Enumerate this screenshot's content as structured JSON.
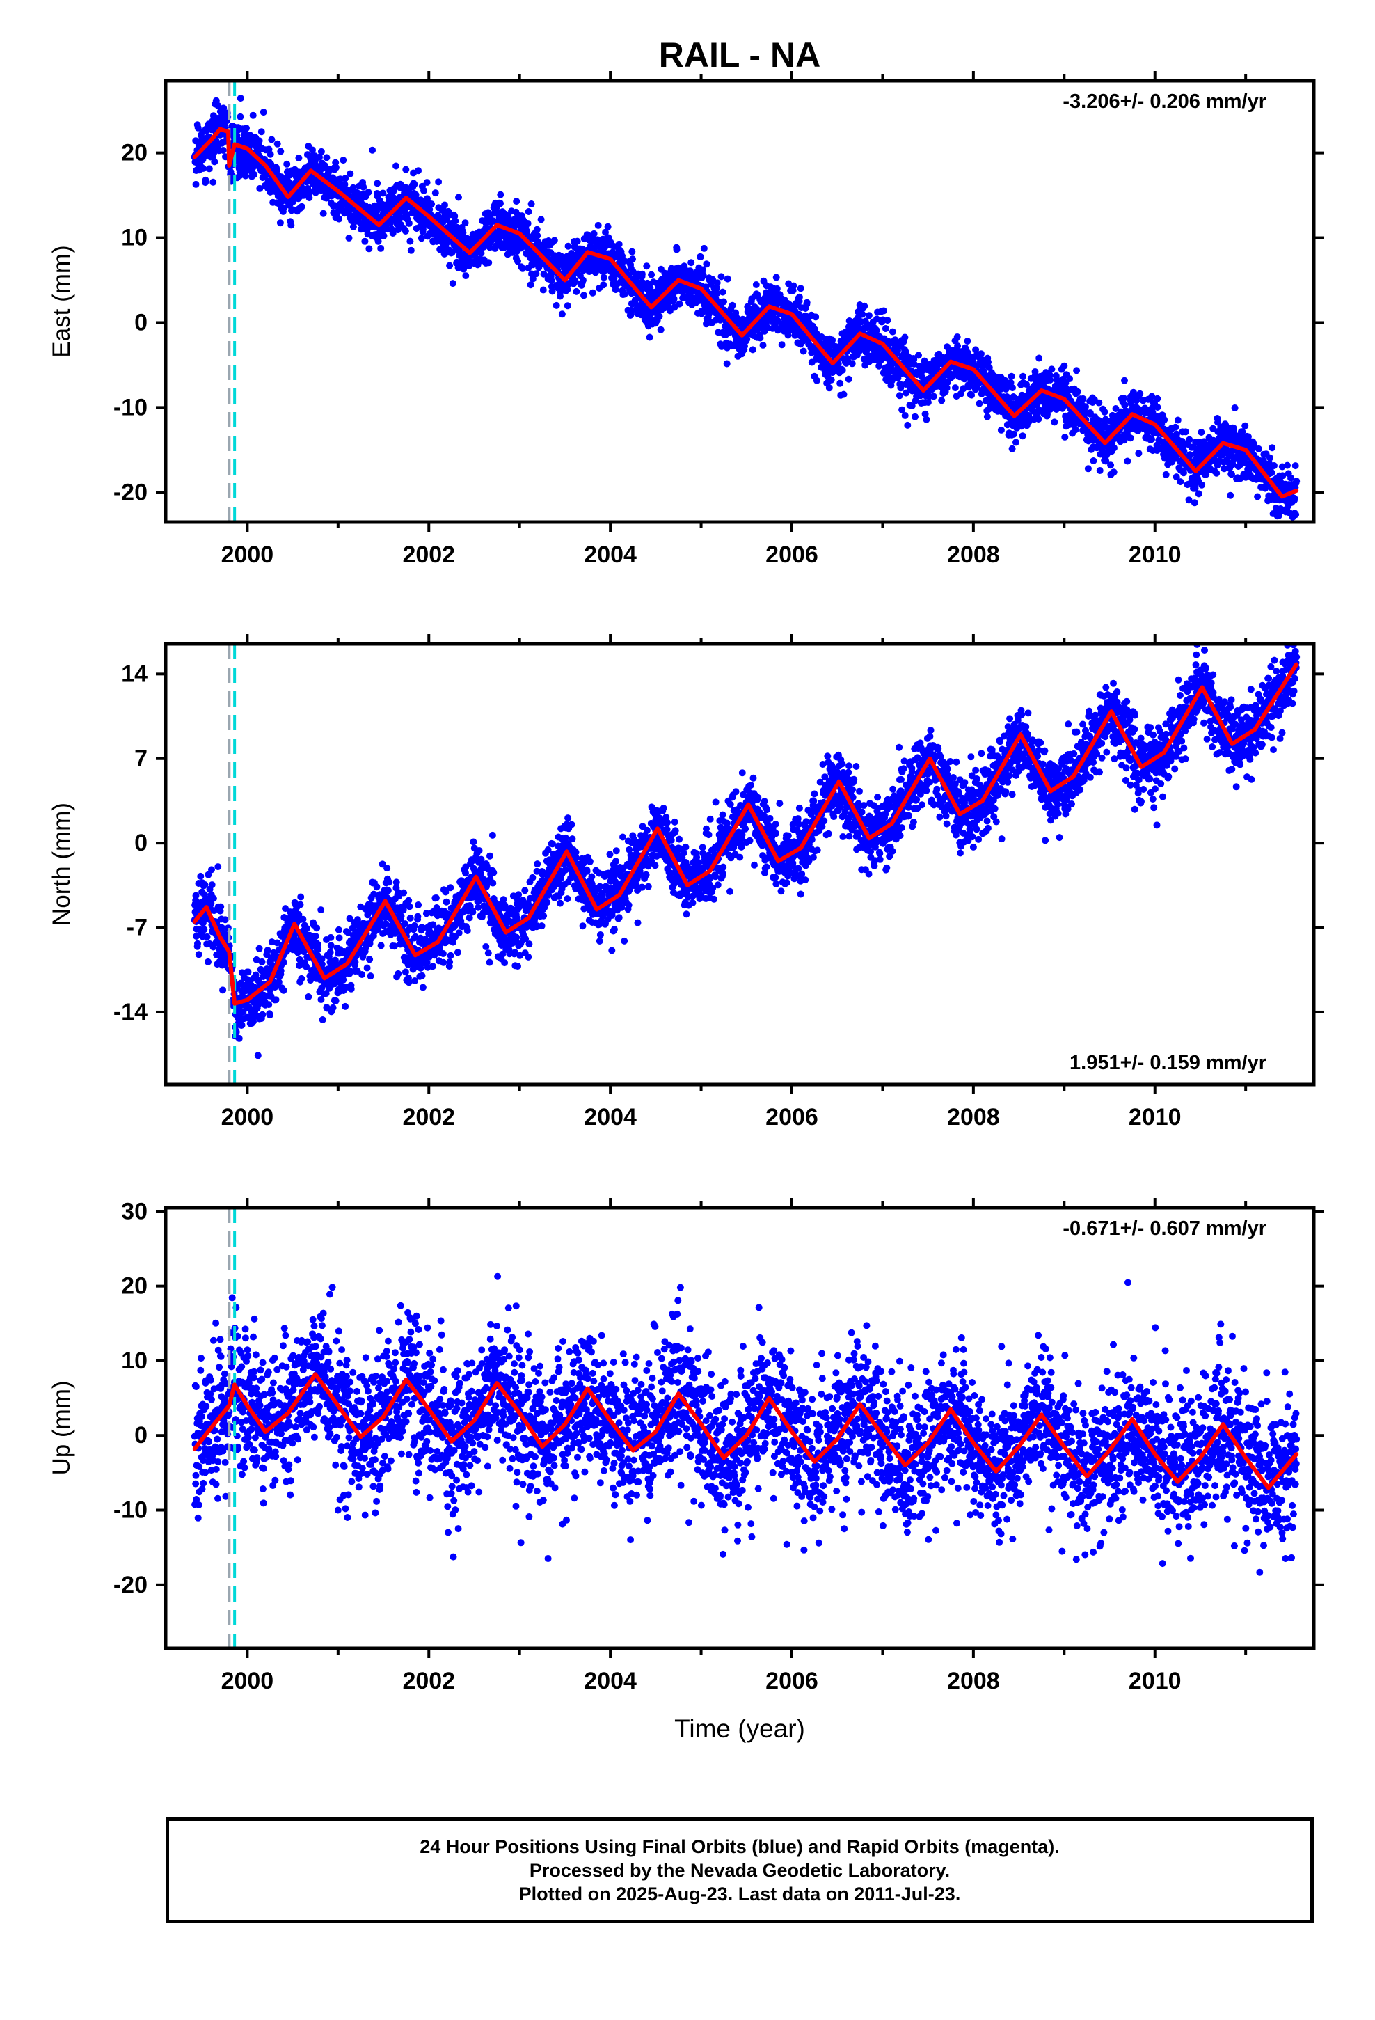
{
  "title": "RAIL - NA",
  "colors": {
    "final_orbits": "#0000ff",
    "model": "#ff0000",
    "offset_1": "#9aa6b0",
    "offset_2": "#00d8d8"
  },
  "chart_data": [
    {
      "type": "scatter",
      "panel": "east",
      "ylabel": "East (mm)",
      "ylim": [
        -23.5,
        28.5
      ],
      "yticks": [
        20,
        10,
        0,
        -10,
        -20
      ],
      "xlim": [
        1999.1,
        2011.75
      ],
      "xticks": [
        2000,
        2002,
        2004,
        2006,
        2008,
        2010
      ],
      "rate_text": "-3.206+/- 0.206 mm/yr",
      "rate_position": "top-right",
      "offsets": [
        1999.8,
        1999.86
      ],
      "series": [
        {
          "name": "final_orbits",
          "color": "#0000ff",
          "data_range": [
            1999.42,
            2011.56
          ],
          "rate": -3.206,
          "intercept_2000": 20.8,
          "seasonal_amplitude": 3.0,
          "seasonal_phase_peak": 0.75,
          "scatter": 1.5
        },
        {
          "name": "model",
          "color": "#ff0000",
          "x": [
            1999.42,
            1999.6,
            1999.7,
            1999.79,
            1999.8,
            1999.86,
            2000.0,
            2000.2,
            2000.45,
            2000.7,
            2001.0,
            2001.45,
            2001.75,
            2002.0,
            2002.45,
            2002.75,
            2003.0,
            2003.5,
            2003.75,
            2004.0,
            2004.45,
            2004.75,
            2005.0,
            2005.45,
            2005.75,
            2006.0,
            2006.45,
            2006.75,
            2007.0,
            2007.45,
            2007.75,
            2008.0,
            2008.45,
            2008.75,
            2009.0,
            2009.45,
            2009.75,
            2010.0,
            2010.45,
            2010.75,
            2011.0,
            2011.4,
            2011.56
          ],
          "y": [
            19.5,
            21.5,
            22.8,
            22.5,
            18.5,
            21.0,
            20.5,
            18.5,
            14.8,
            17.9,
            15.5,
            11.5,
            14.7,
            12.5,
            8.2,
            11.5,
            10.5,
            5.0,
            8.3,
            7.5,
            1.8,
            5.0,
            4.0,
            -1.5,
            1.9,
            1.0,
            -4.8,
            -1.3,
            -2.5,
            -8.0,
            -4.6,
            -5.5,
            -11.0,
            -8.0,
            -9.0,
            -14.2,
            -10.8,
            -12.0,
            -17.5,
            -14.2,
            -15.0,
            -20.5,
            -19.8
          ]
        }
      ]
    },
    {
      "type": "scatter",
      "panel": "north",
      "ylabel": "North (mm)",
      "ylim": [
        -20,
        16.5
      ],
      "yticks": [
        14,
        7,
        0,
        -7,
        -14
      ],
      "xlim": [
        1999.1,
        2011.75
      ],
      "xticks": [
        2000,
        2002,
        2004,
        2006,
        2008,
        2010
      ],
      "rate_text": "1.951+/- 0.159 mm/yr",
      "rate_position": "bottom-right",
      "offsets": [
        1999.8,
        1999.86
      ],
      "series": [
        {
          "name": "final_orbits",
          "color": "#0000ff",
          "data_range": [
            1999.42,
            2011.56
          ],
          "rate": 1.951,
          "intercept_2000": -10.5,
          "seasonal_amplitude": 3.0,
          "seasonal_phase_peak": 0.52,
          "scatter": 1.4
        },
        {
          "name": "model",
          "color": "#ff0000",
          "x": [
            1999.42,
            1999.55,
            1999.7,
            1999.8,
            1999.86,
            2000.0,
            2000.25,
            2000.52,
            2000.85,
            2001.1,
            2001.52,
            2001.85,
            2002.1,
            2002.52,
            2002.85,
            2003.1,
            2003.52,
            2003.85,
            2004.1,
            2004.52,
            2004.85,
            2005.1,
            2005.52,
            2005.85,
            2006.1,
            2006.52,
            2006.85,
            2007.1,
            2007.52,
            2007.85,
            2008.1,
            2008.52,
            2008.85,
            2009.1,
            2009.52,
            2009.85,
            2010.1,
            2010.52,
            2010.85,
            2011.1,
            2011.56
          ],
          "y": [
            -6.5,
            -5.3,
            -7.8,
            -9.0,
            -13.3,
            -13.0,
            -11.5,
            -6.7,
            -11.2,
            -10.0,
            -4.8,
            -9.3,
            -8.2,
            -2.8,
            -7.4,
            -6.2,
            -0.7,
            -5.5,
            -4.3,
            1.2,
            -3.5,
            -2.3,
            3.2,
            -1.5,
            -0.4,
            5.1,
            0.4,
            1.6,
            7.0,
            2.4,
            3.5,
            9.0,
            4.3,
            5.5,
            10.9,
            6.3,
            7.5,
            12.9,
            8.2,
            9.4,
            14.8
          ]
        }
      ]
    },
    {
      "type": "scatter",
      "panel": "up",
      "ylabel": "Up (mm)",
      "ylim": [
        -28.5,
        30.5
      ],
      "yticks": [
        30,
        20,
        10,
        0,
        -10,
        -20
      ],
      "xlim": [
        1999.1,
        2011.75
      ],
      "xticks": [
        2000,
        2002,
        2004,
        2006,
        2008,
        2010
      ],
      "xlabel": "Time (year)",
      "rate_text": "-0.671+/- 0.607 mm/yr",
      "rate_position": "top-right",
      "offsets": [
        1999.8,
        1999.86
      ],
      "series": [
        {
          "name": "final_orbits",
          "color": "#0000ff",
          "data_range": [
            1999.42,
            2011.56
          ],
          "rate": -0.671,
          "intercept_2000": 2.0,
          "seasonal_amplitude": 4.5,
          "seasonal_phase_peak": 0.75,
          "scatter": 4.5
        },
        {
          "name": "model",
          "color": "#ff0000",
          "x": [
            1999.42,
            1999.6,
            1999.8,
            1999.86,
            2000.0,
            2000.2,
            2000.45,
            2000.75,
            2001.0,
            2001.25,
            2001.5,
            2001.75,
            2002.0,
            2002.25,
            2002.5,
            2002.75,
            2003.0,
            2003.25,
            2003.5,
            2003.75,
            2004.0,
            2004.25,
            2004.5,
            2004.75,
            2005.0,
            2005.25,
            2005.5,
            2005.75,
            2006.0,
            2006.25,
            2006.5,
            2006.75,
            2007.0,
            2007.25,
            2007.5,
            2007.75,
            2008.0,
            2008.25,
            2008.5,
            2008.75,
            2009.0,
            2009.25,
            2009.5,
            2009.75,
            2010.0,
            2010.25,
            2010.5,
            2010.75,
            2011.0,
            2011.25,
            2011.56
          ],
          "y": [
            -1.8,
            1.0,
            4.0,
            6.8,
            4.0,
            0.5,
            3.0,
            8.2,
            4.0,
            -0.2,
            2.5,
            7.5,
            3.5,
            -0.8,
            2.0,
            7.0,
            3.0,
            -1.5,
            1.5,
            6.3,
            2.0,
            -2.0,
            0.5,
            5.6,
            1.5,
            -3.0,
            0.0,
            5.0,
            0.5,
            -3.5,
            -0.5,
            4.2,
            0.0,
            -4.0,
            -1.0,
            3.5,
            -1.0,
            -4.8,
            -1.5,
            2.8,
            -1.5,
            -5.5,
            -2.0,
            2.2,
            -2.5,
            -6.2,
            -3.0,
            1.5,
            -3.0,
            -7.0,
            -2.5
          ]
        }
      ]
    }
  ],
  "footer": {
    "line1": "24 Hour Positions Using Final Orbits (blue) and Rapid Orbits (magenta).",
    "line2": "Processed by the Nevada Geodetic Laboratory.",
    "line3": "Plotted on 2025-Aug-23. Last data on 2011-Jul-23."
  }
}
